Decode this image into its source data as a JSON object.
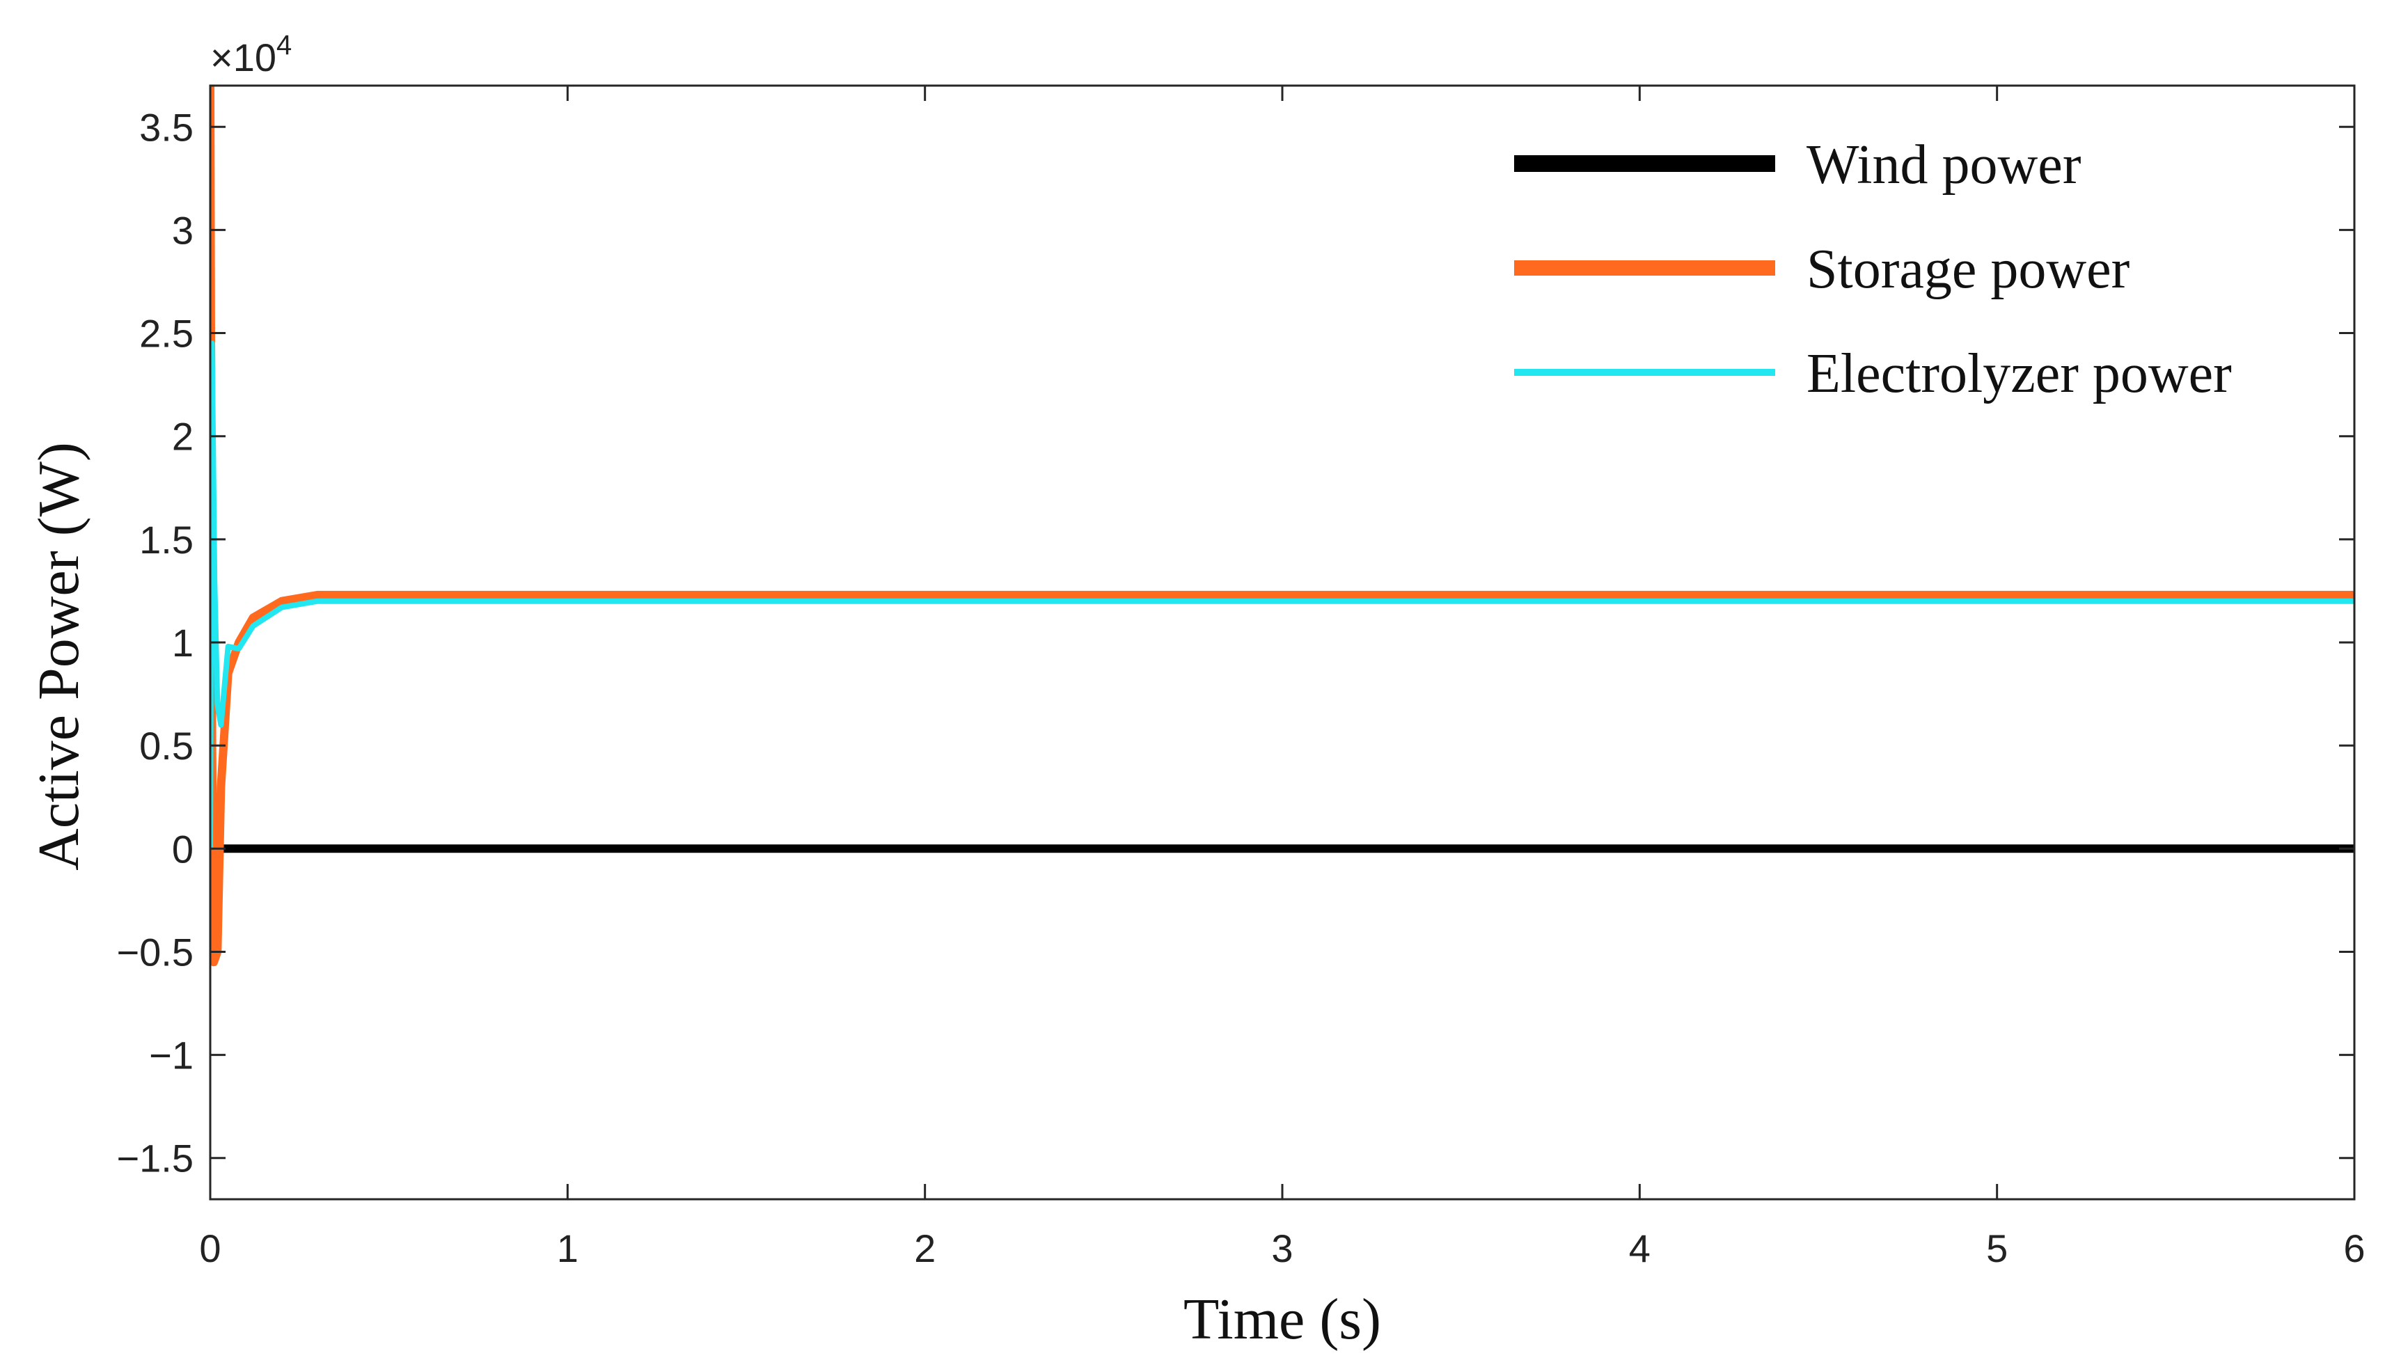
{
  "chart_data": {
    "type": "line",
    "xlabel": "Time (s)",
    "ylabel": "Active Power (W)",
    "y_multiplier": "×10",
    "y_multiplier_exponent": "4",
    "xlim": [
      0,
      6
    ],
    "ylim": [
      -1.7,
      3.7
    ],
    "x_ticks": [
      0,
      1,
      2,
      3,
      4,
      5,
      6
    ],
    "x_tick_labels": [
      "0",
      "1",
      "2",
      "3",
      "4",
      "5",
      "6"
    ],
    "y_ticks": [
      -1.5,
      -1,
      -0.5,
      0,
      0.5,
      1,
      1.5,
      2,
      2.5,
      3,
      3.5
    ],
    "y_tick_labels": [
      "−1.5",
      "−1",
      "−0.5",
      "0",
      "0.5",
      "1",
      "1.5",
      "2",
      "2.5",
      "3",
      "3.5"
    ],
    "grid": false,
    "legend_position": "top-right",
    "series": [
      {
        "name": "Wind power",
        "color": "#000000",
        "x": [
          0,
          0.02,
          6
        ],
        "y": [
          0,
          0,
          0
        ]
      },
      {
        "name": "Storage power",
        "color": "#FF6A1F",
        "x": [
          0,
          0.005,
          0.01,
          0.02,
          0.03,
          0.05,
          0.08,
          0.12,
          0.2,
          0.3,
          0.5,
          1,
          2,
          3,
          4,
          5,
          6
        ],
        "y": [
          3.7,
          0.5,
          -0.55,
          -0.5,
          0.3,
          0.85,
          1.0,
          1.12,
          1.2,
          1.23,
          1.23,
          1.23,
          1.23,
          1.23,
          1.23,
          1.23,
          1.23
        ]
      },
      {
        "name": "Electrolyzer power",
        "color": "#22E6F0",
        "x": [
          0,
          0.005,
          0.012,
          0.02,
          0.03,
          0.05,
          0.08,
          0.12,
          0.2,
          0.3,
          0.5,
          1,
          2,
          3,
          4,
          5,
          6
        ],
        "y": [
          0,
          2.45,
          1.3,
          0.7,
          0.6,
          0.98,
          0.97,
          1.08,
          1.17,
          1.2,
          1.2,
          1.2,
          1.2,
          1.2,
          1.2,
          1.2,
          1.2
        ]
      }
    ]
  }
}
